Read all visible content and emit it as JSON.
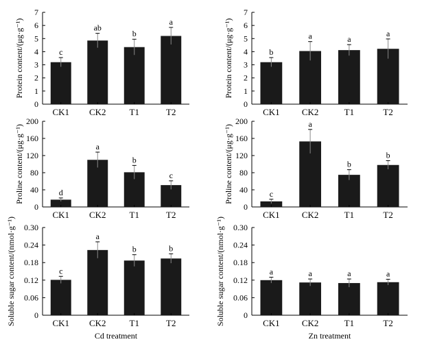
{
  "chart_data": [
    {
      "type": "bar",
      "ylabel": "Protein content/(μg·g⁻¹)",
      "xlabel": "",
      "categories": [
        "CK1",
        "CK2",
        "T1",
        "T2"
      ],
      "values": [
        3.2,
        4.85,
        4.35,
        5.2
      ],
      "errors": [
        0.35,
        0.55,
        0.6,
        0.65
      ],
      "letters": [
        "c",
        "ab",
        "b",
        "a"
      ],
      "ylim": [
        0,
        7
      ],
      "yticks": [
        0,
        1,
        2,
        3,
        4,
        5,
        6,
        7
      ]
    },
    {
      "type": "bar",
      "ylabel": "Protein content/(μg·g⁻¹)",
      "xlabel": "",
      "categories": [
        "CK1",
        "CK2",
        "T1",
        "T2"
      ],
      "values": [
        3.2,
        4.05,
        4.12,
        4.22
      ],
      "errors": [
        0.35,
        0.72,
        0.42,
        0.75
      ],
      "letters": [
        "b",
        "a",
        "a",
        "a"
      ],
      "ylim": [
        0,
        7
      ],
      "yticks": [
        0,
        1,
        2,
        3,
        4,
        5,
        6,
        7
      ]
    },
    {
      "type": "bar",
      "ylabel": "Proline content/(μg·g⁻¹)",
      "xlabel": "",
      "categories": [
        "CK1",
        "CK2",
        "T1",
        "T2"
      ],
      "values": [
        17,
        110,
        81,
        51
      ],
      "errors": [
        4,
        18,
        16,
        10
      ],
      "letters": [
        "d",
        "a",
        "b",
        "c"
      ],
      "ylim": [
        0,
        200
      ],
      "yticks": [
        0,
        40,
        80,
        120,
        160,
        200
      ]
    },
    {
      "type": "bar",
      "ylabel": "Proline content/(μg·g⁻¹)",
      "xlabel": "",
      "categories": [
        "CK1",
        "CK2",
        "T1",
        "T2"
      ],
      "values": [
        13,
        153,
        75,
        98
      ],
      "errors": [
        5,
        28,
        12,
        10
      ],
      "letters": [
        "c",
        "a",
        "b",
        "b"
      ],
      "ylim": [
        0,
        200
      ],
      "yticks": [
        0,
        40,
        80,
        120,
        160,
        200
      ]
    },
    {
      "type": "bar",
      "ylabel": "Soluble sugar content/(nmol·g⁻¹)",
      "xlabel": "Cd treatment",
      "categories": [
        "CK1",
        "CK2",
        "T1",
        "T2"
      ],
      "values": [
        0.121,
        0.223,
        0.187,
        0.194
      ],
      "errors": [
        0.012,
        0.028,
        0.02,
        0.016
      ],
      "letters": [
        "c",
        "a",
        "b",
        "b"
      ],
      "ylim": [
        0,
        0.3
      ],
      "yticks": [
        "0",
        "0.06",
        "0.12",
        "0.18",
        "0.24",
        "0.30"
      ]
    },
    {
      "type": "bar",
      "ylabel": "Soluble sugar content/(nmol·g⁻¹)",
      "xlabel": "Zn treatment",
      "categories": [
        "CK1",
        "CK2",
        "T1",
        "T2"
      ],
      "values": [
        0.12,
        0.112,
        0.11,
        0.113
      ],
      "errors": [
        0.01,
        0.012,
        0.014,
        0.01
      ],
      "letters": [
        "a",
        "a",
        "a",
        "a"
      ],
      "ylim": [
        0,
        0.3
      ],
      "yticks": [
        "0",
        "0.06",
        "0.12",
        "0.18",
        "0.24",
        "0.30"
      ]
    }
  ]
}
